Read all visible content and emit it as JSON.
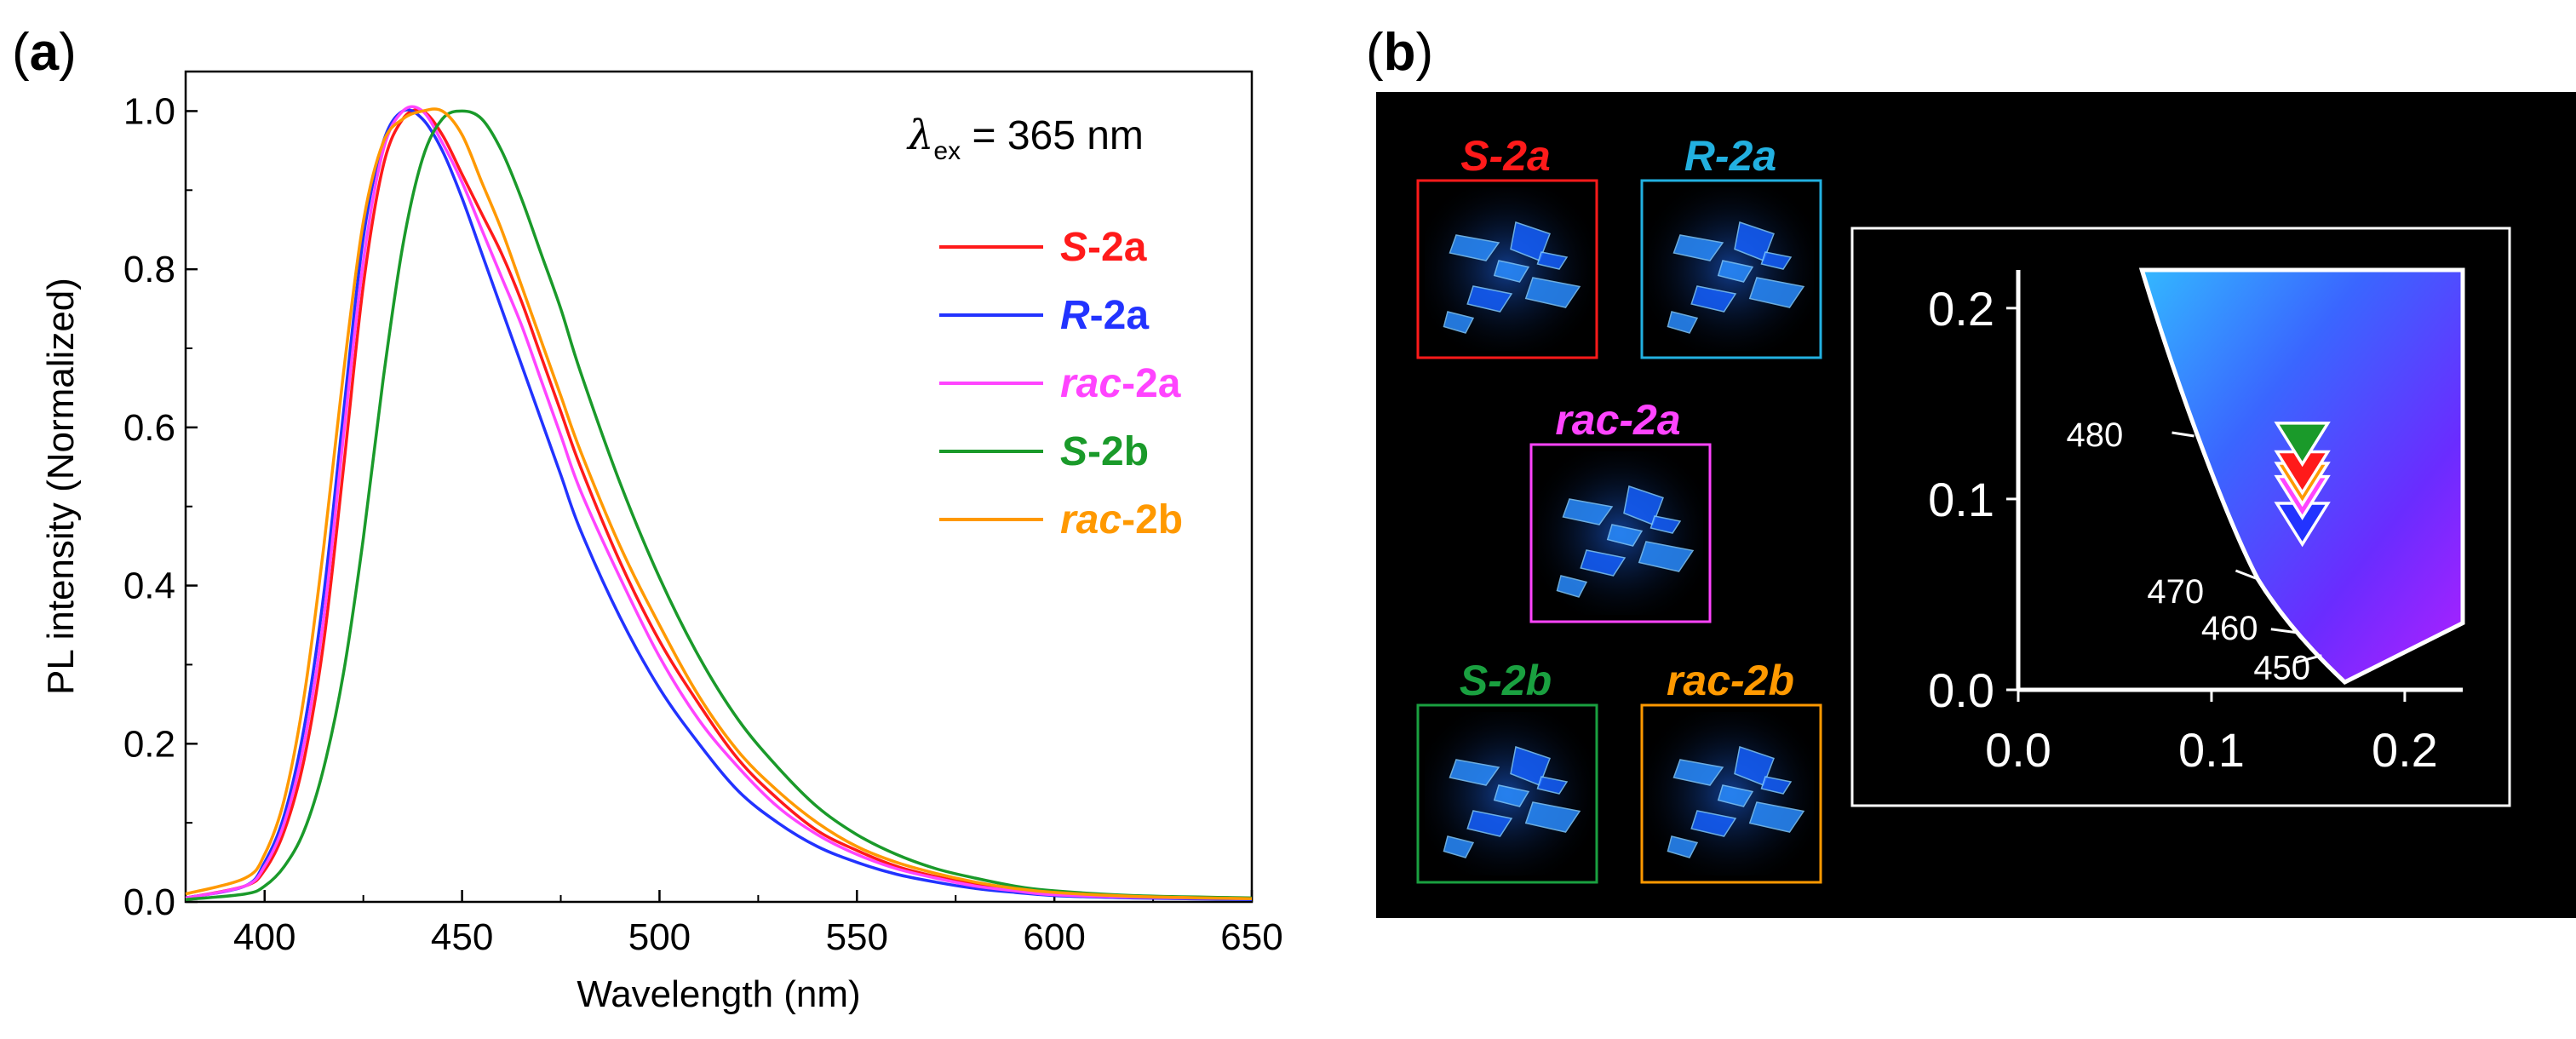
{
  "panels": {
    "a": {
      "label_open": "(",
      "label": "a",
      "label_close": ")"
    },
    "b": {
      "label_open": "(",
      "label": "b",
      "label_close": ")"
    }
  },
  "chart_data": [
    {
      "type": "line",
      "panel": "a",
      "xlabel": "Wavelength (nm)",
      "ylabel": "PL intensity (Normalized)",
      "xlim": [
        380,
        650
      ],
      "ylim": [
        0,
        1.05
      ],
      "xticks": [
        400,
        450,
        500,
        550,
        600,
        650
      ],
      "yticks": [
        0.0,
        0.2,
        0.4,
        0.6,
        0.8,
        1.0
      ],
      "xtick_labels": [
        "400",
        "450",
        "500",
        "550",
        "600",
        "650"
      ],
      "ytick_labels": [
        "0.0",
        "0.2",
        "0.4",
        "0.6",
        "0.8",
        "1.0"
      ],
      "annotation": {
        "symbol": "λ",
        "subscript": "ex",
        "text": " = 365 nm"
      },
      "legend_position": "right",
      "series": [
        {
          "name": "S-2a",
          "prefix": "S",
          "suffix": "-2a",
          "color": "#ff1a1a",
          "x": [
            380,
            395,
            400,
            405,
            410,
            415,
            420,
            425,
            430,
            435,
            440,
            445,
            450,
            455,
            460,
            465,
            470,
            475,
            480,
            490,
            500,
            510,
            520,
            530,
            540,
            550,
            560,
            570,
            580,
            590,
            600,
            620,
            650
          ],
          "y": [
            0.005,
            0.02,
            0.04,
            0.09,
            0.18,
            0.33,
            0.55,
            0.78,
            0.93,
            0.99,
            1.0,
            0.97,
            0.92,
            0.87,
            0.82,
            0.76,
            0.69,
            0.62,
            0.55,
            0.43,
            0.33,
            0.25,
            0.18,
            0.13,
            0.09,
            0.065,
            0.045,
            0.032,
            0.022,
            0.015,
            0.01,
            0.006,
            0.004
          ]
        },
        {
          "name": "R-2a",
          "prefix": "R",
          "suffix": "-2a",
          "color": "#2233ff",
          "x": [
            380,
            395,
            400,
            405,
            410,
            415,
            420,
            425,
            430,
            435,
            440,
            445,
            450,
            455,
            460,
            465,
            470,
            475,
            480,
            490,
            500,
            510,
            520,
            530,
            540,
            550,
            560,
            570,
            580,
            590,
            600,
            620,
            650
          ],
          "y": [
            0.005,
            0.02,
            0.05,
            0.11,
            0.22,
            0.39,
            0.62,
            0.84,
            0.96,
            1.0,
            0.99,
            0.95,
            0.89,
            0.82,
            0.75,
            0.68,
            0.61,
            0.54,
            0.47,
            0.36,
            0.27,
            0.2,
            0.14,
            0.1,
            0.07,
            0.05,
            0.035,
            0.025,
            0.017,
            0.012,
            0.008,
            0.005,
            0.003
          ]
        },
        {
          "name": "rac-2a",
          "prefix": "rac",
          "suffix": "-2a",
          "color": "#ff44ff",
          "x": [
            380,
            395,
            400,
            405,
            410,
            415,
            420,
            425,
            430,
            435,
            440,
            445,
            450,
            455,
            460,
            465,
            470,
            475,
            480,
            490,
            500,
            510,
            520,
            530,
            540,
            550,
            560,
            570,
            580,
            590,
            600,
            620,
            650
          ],
          "y": [
            0.005,
            0.02,
            0.045,
            0.1,
            0.2,
            0.36,
            0.59,
            0.81,
            0.95,
            1.0,
            1.0,
            0.96,
            0.91,
            0.85,
            0.79,
            0.73,
            0.66,
            0.59,
            0.52,
            0.41,
            0.31,
            0.23,
            0.17,
            0.12,
            0.085,
            0.06,
            0.042,
            0.03,
            0.02,
            0.014,
            0.009,
            0.006,
            0.004
          ]
        },
        {
          "name": "S-2b",
          "prefix": "S",
          "suffix": "-2b",
          "color": "#1a9a2a",
          "x": [
            380,
            395,
            400,
            405,
            410,
            415,
            420,
            425,
            430,
            435,
            440,
            445,
            450,
            455,
            460,
            465,
            470,
            475,
            480,
            490,
            500,
            510,
            520,
            530,
            540,
            550,
            560,
            570,
            580,
            590,
            600,
            620,
            650
          ],
          "y": [
            0.003,
            0.01,
            0.02,
            0.045,
            0.09,
            0.17,
            0.29,
            0.46,
            0.66,
            0.83,
            0.94,
            0.99,
            1.0,
            0.99,
            0.95,
            0.89,
            0.82,
            0.75,
            0.67,
            0.53,
            0.41,
            0.31,
            0.23,
            0.17,
            0.12,
            0.085,
            0.06,
            0.042,
            0.03,
            0.02,
            0.014,
            0.008,
            0.005
          ]
        },
        {
          "name": "rac-2b",
          "prefix": "rac",
          "suffix": "-2b",
          "color": "#ff9900",
          "x": [
            380,
            395,
            400,
            405,
            410,
            415,
            420,
            425,
            430,
            435,
            440,
            445,
            450,
            455,
            460,
            465,
            470,
            475,
            480,
            490,
            500,
            510,
            520,
            530,
            540,
            550,
            560,
            570,
            580,
            590,
            600,
            620,
            650
          ],
          "y": [
            0.01,
            0.03,
            0.06,
            0.13,
            0.26,
            0.45,
            0.67,
            0.86,
            0.96,
            0.99,
            1.0,
            1.0,
            0.97,
            0.91,
            0.85,
            0.78,
            0.71,
            0.64,
            0.57,
            0.45,
            0.35,
            0.26,
            0.19,
            0.14,
            0.1,
            0.07,
            0.05,
            0.036,
            0.025,
            0.017,
            0.012,
            0.007,
            0.004
          ]
        }
      ]
    },
    {
      "type": "scatter",
      "panel": "b",
      "subtype": "CIE 1931 chromaticity (zoomed)",
      "xlim": [
        0,
        0.23
      ],
      "ylim": [
        0,
        0.22
      ],
      "xticks": [
        0.0,
        0.1,
        0.2
      ],
      "yticks": [
        0.0,
        0.1,
        0.2
      ],
      "xtick_labels": [
        "0.0",
        "0.1",
        "0.2"
      ],
      "ytick_labels": [
        "0.0",
        "0.1",
        "0.2"
      ],
      "locus_wavelength_labels": [
        "450",
        "460",
        "470",
        "480"
      ],
      "locus_points": [
        {
          "wavelength": "450",
          "x": 0.157,
          "y": 0.018
        },
        {
          "wavelength": "460",
          "x": 0.144,
          "y": 0.03
        },
        {
          "wavelength": "470",
          "x": 0.124,
          "y": 0.058
        },
        {
          "wavelength": "480",
          "x": 0.091,
          "y": 0.133
        }
      ],
      "points": [
        {
          "name": "S-2b",
          "x": 0.147,
          "y": 0.129,
          "color": "#1a9a2a"
        },
        {
          "name": "S-2a",
          "x": 0.147,
          "y": 0.114,
          "color": "#ff1a1a"
        },
        {
          "name": "rac-2b",
          "x": 0.147,
          "y": 0.108,
          "color": "#ff9900"
        },
        {
          "name": "rac-2a",
          "x": 0.147,
          "y": 0.101,
          "color": "#ff44ff"
        },
        {
          "name": "R-2a",
          "x": 0.147,
          "y": 0.087,
          "color": "#2233ff"
        }
      ]
    }
  ],
  "photos": [
    {
      "name": "S-2a",
      "prefix": "S",
      "suffix": "-2a",
      "color": "#ff1a1a"
    },
    {
      "name": "R-2a",
      "prefix": "R",
      "suffix": "-2a",
      "color": "#22b0e0"
    },
    {
      "name": "rac-2a",
      "prefix": "rac",
      "suffix": "-2a",
      "color": "#ff44ff"
    },
    {
      "name": "S-2b",
      "prefix": "S",
      "suffix": "-2b",
      "color": "#1aa040"
    },
    {
      "name": "rac-2b",
      "prefix": "rac",
      "suffix": "-2b",
      "color": "#ff9900"
    }
  ]
}
